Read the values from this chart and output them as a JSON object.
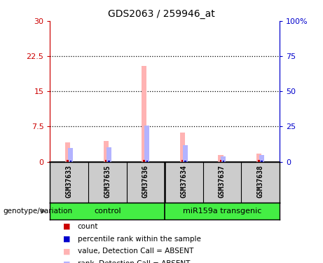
{
  "title": "GDS2063 / 259946_at",
  "samples": [
    "GSM37633",
    "GSM37635",
    "GSM37636",
    "GSM37634",
    "GSM37637",
    "GSM37638"
  ],
  "value_absent": [
    4.2,
    4.5,
    20.5,
    6.2,
    1.5,
    1.8
  ],
  "rank_absent_pct": [
    10.0,
    10.5,
    25.5,
    12.0,
    4.0,
    5.0
  ],
  "count_val": [
    0.35,
    0.35,
    0.35,
    0.35,
    0.35,
    0.35
  ],
  "percentile_val_pct": [
    1.0,
    1.0,
    1.0,
    1.0,
    1.0,
    1.0
  ],
  "ylim_left": [
    0,
    30
  ],
  "ylim_right": [
    0,
    100
  ],
  "yticks_left": [
    0,
    7.5,
    15,
    22.5,
    30
  ],
  "ytick_labels_left": [
    "0",
    "7.5",
    "15",
    "22.5",
    "30"
  ],
  "yticks_right": [
    0,
    25,
    50,
    75,
    100
  ],
  "ytick_labels_right": [
    "0",
    "25",
    "50",
    "75",
    "100%"
  ],
  "color_absent_value": "#ffb3b3",
  "color_absent_rank": "#b3b3ff",
  "color_count": "#cc0000",
  "color_percentile": "#0000cc",
  "legend_items": [
    {
      "label": "count",
      "color": "#cc0000"
    },
    {
      "label": "percentile rank within the sample",
      "color": "#0000cc"
    },
    {
      "label": "value, Detection Call = ABSENT",
      "color": "#ffb3b3"
    },
    {
      "label": "rank, Detection Call = ABSENT",
      "color": "#b3b3ff"
    }
  ],
  "left_axis_color": "#cc0000",
  "right_axis_color": "#0000cc",
  "sample_box_color": "#cccccc",
  "group_label": "genotype/variation",
  "group_green": "#44ee44",
  "title_fontsize": 10
}
